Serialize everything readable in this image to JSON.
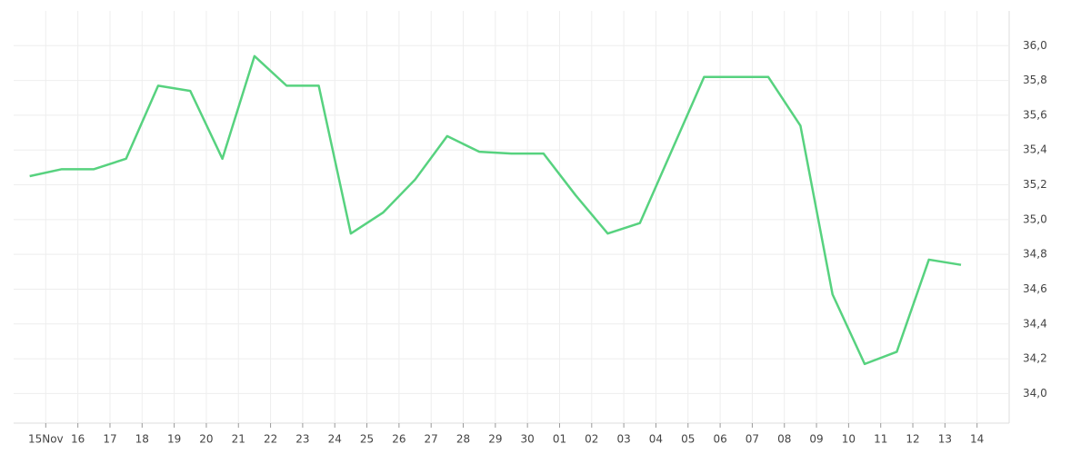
{
  "chart_data": {
    "type": "line",
    "x": [
      -0.5,
      0.5,
      1.5,
      2.5,
      3.5,
      4.5,
      5.5,
      6.5,
      7.5,
      8.5,
      9.5,
      10.5,
      11.5,
      12.5,
      13.5,
      14.5,
      15.5,
      16.5,
      17.5,
      18.5,
      19.5,
      20.5,
      21.5,
      22.5,
      23.5,
      24.5,
      25.5,
      26.5,
      27.5,
      28.5
    ],
    "series": [
      {
        "color": "#57d27f",
        "values": [
          35.25,
          35.29,
          35.29,
          35.35,
          35.77,
          35.74,
          35.35,
          35.94,
          35.77,
          35.77,
          34.92,
          35.04,
          35.23,
          35.48,
          35.39,
          35.38,
          35.38,
          35.14,
          34.92,
          34.98,
          35.4,
          35.82,
          35.82,
          35.82,
          35.54,
          34.57,
          34.17,
          34.24,
          34.77,
          34.74
        ]
      }
    ],
    "xlim": [
      -1,
      30
    ],
    "xticks": [
      {
        "value": 0,
        "label": "15Nov"
      },
      {
        "value": 1,
        "label": "16"
      },
      {
        "value": 2,
        "label": "17"
      },
      {
        "value": 3,
        "label": "18"
      },
      {
        "value": 4,
        "label": "19"
      },
      {
        "value": 5,
        "label": "20"
      },
      {
        "value": 6,
        "label": "21"
      },
      {
        "value": 7,
        "label": "22"
      },
      {
        "value": 8,
        "label": "23"
      },
      {
        "value": 9,
        "label": "24"
      },
      {
        "value": 10,
        "label": "25"
      },
      {
        "value": 11,
        "label": "26"
      },
      {
        "value": 12,
        "label": "27"
      },
      {
        "value": 13,
        "label": "28"
      },
      {
        "value": 14,
        "label": "29"
      },
      {
        "value": 15,
        "label": "30"
      },
      {
        "value": 16,
        "label": "01"
      },
      {
        "value": 17,
        "label": "02"
      },
      {
        "value": 18,
        "label": "03"
      },
      {
        "value": 19,
        "label": "04"
      },
      {
        "value": 20,
        "label": "05"
      },
      {
        "value": 21,
        "label": "06"
      },
      {
        "value": 22,
        "label": "07"
      },
      {
        "value": 23,
        "label": "08"
      },
      {
        "value": 24,
        "label": "09"
      },
      {
        "value": 25,
        "label": "10"
      },
      {
        "value": 26,
        "label": "11"
      },
      {
        "value": 27,
        "label": "12"
      },
      {
        "value": 28,
        "label": "13"
      },
      {
        "value": 29,
        "label": "14"
      }
    ],
    "ylim": [
      33.83,
      36.2
    ],
    "yticks": [
      {
        "value": 34,
        "label": "34,0"
      },
      {
        "value": 34.2,
        "label": "34,2"
      },
      {
        "value": 34.4,
        "label": "34,4"
      },
      {
        "value": 34.6,
        "label": "34,6"
      },
      {
        "value": 34.8,
        "label": "34,8"
      },
      {
        "value": 35,
        "label": "35,0"
      },
      {
        "value": 35.2,
        "label": "35,2"
      },
      {
        "value": 35.4,
        "label": "35,4"
      },
      {
        "value": 35.6,
        "label": "35,6"
      },
      {
        "value": 35.8,
        "label": "35,8"
      },
      {
        "value": 36,
        "label": "36,0"
      }
    ],
    "grid": true
  }
}
